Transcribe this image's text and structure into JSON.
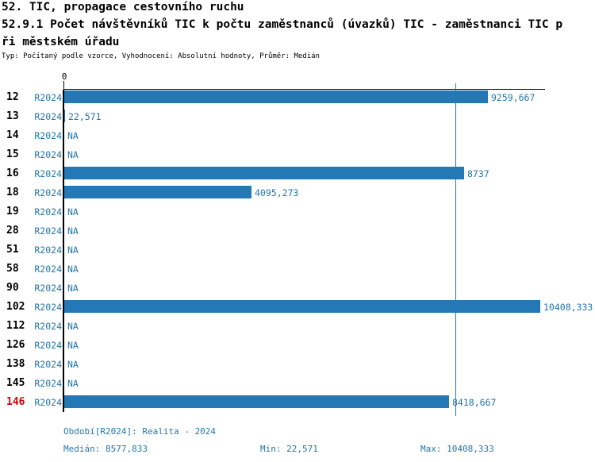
{
  "header": {
    "title_line1": "52. TIC, propagace cestovního ruchu",
    "title_line2": "52.9.1 Počet návštěvníků TIC k počtu zaměstnanců (úvazků) TIC - zaměstnanci TIC p",
    "title_line3": "ři městském úřadu",
    "subtitle": "Typ: Počítaný podle vzorce, Vyhodnocení: Absolutní hodnoty, Průměr: Medián"
  },
  "chart_data": {
    "type": "bar",
    "orientation": "horizontal",
    "title": "52.9.1 Počet návštěvníků TIC k počtu zaměstnanců (úvazků) TIC - zaměstnanci TIC při městském úřadu",
    "axis_origin_label": "0",
    "xlim": [
      0,
      10408.333
    ],
    "median": 8577.833,
    "min": 22.571,
    "max": 10408.333,
    "period": "R2024",
    "grid": false,
    "categories": [
      "12",
      "13",
      "14",
      "15",
      "16",
      "18",
      "19",
      "28",
      "51",
      "58",
      "90",
      "102",
      "112",
      "126",
      "138",
      "145",
      "146"
    ],
    "rows": [
      {
        "id": "12",
        "period": "R2024",
        "value": 9259.667,
        "value_label": "9259,667",
        "highlight": false
      },
      {
        "id": "13",
        "period": "R2024",
        "value": 22.571,
        "value_label": "22,571",
        "highlight": false
      },
      {
        "id": "14",
        "period": "R2024",
        "value": null,
        "value_label": "NA",
        "highlight": false
      },
      {
        "id": "15",
        "period": "R2024",
        "value": null,
        "value_label": "NA",
        "highlight": false
      },
      {
        "id": "16",
        "period": "R2024",
        "value": 8737,
        "value_label": "8737",
        "highlight": false
      },
      {
        "id": "18",
        "period": "R2024",
        "value": 4095.273,
        "value_label": "4095,273",
        "highlight": false
      },
      {
        "id": "19",
        "period": "R2024",
        "value": null,
        "value_label": "NA",
        "highlight": false
      },
      {
        "id": "28",
        "period": "R2024",
        "value": null,
        "value_label": "NA",
        "highlight": false
      },
      {
        "id": "51",
        "period": "R2024",
        "value": null,
        "value_label": "NA",
        "highlight": false
      },
      {
        "id": "58",
        "period": "R2024",
        "value": null,
        "value_label": "NA",
        "highlight": false
      },
      {
        "id": "90",
        "period": "R2024",
        "value": null,
        "value_label": "NA",
        "highlight": false
      },
      {
        "id": "102",
        "period": "R2024",
        "value": 10408.333,
        "value_label": "10408,333",
        "highlight": false
      },
      {
        "id": "112",
        "period": "R2024",
        "value": null,
        "value_label": "NA",
        "highlight": false
      },
      {
        "id": "126",
        "period": "R2024",
        "value": null,
        "value_label": "NA",
        "highlight": false
      },
      {
        "id": "138",
        "period": "R2024",
        "value": null,
        "value_label": "NA",
        "highlight": false
      },
      {
        "id": "145",
        "period": "R2024",
        "value": null,
        "value_label": "NA",
        "highlight": false
      },
      {
        "id": "146",
        "period": "R2024",
        "value": 8418.667,
        "value_label": "8418,667",
        "highlight": true
      }
    ],
    "colors": {
      "bar": "#2478b5",
      "blue_text": "#2176ae",
      "highlight_red": "#d40000",
      "axis": "#000000"
    }
  },
  "footer": {
    "period_line": "Období[R2024]: Realita - 2024",
    "median_label": "Medián: 8577,833",
    "min_label": "Min: 22,571",
    "max_label": "Max: 10408,333"
  }
}
